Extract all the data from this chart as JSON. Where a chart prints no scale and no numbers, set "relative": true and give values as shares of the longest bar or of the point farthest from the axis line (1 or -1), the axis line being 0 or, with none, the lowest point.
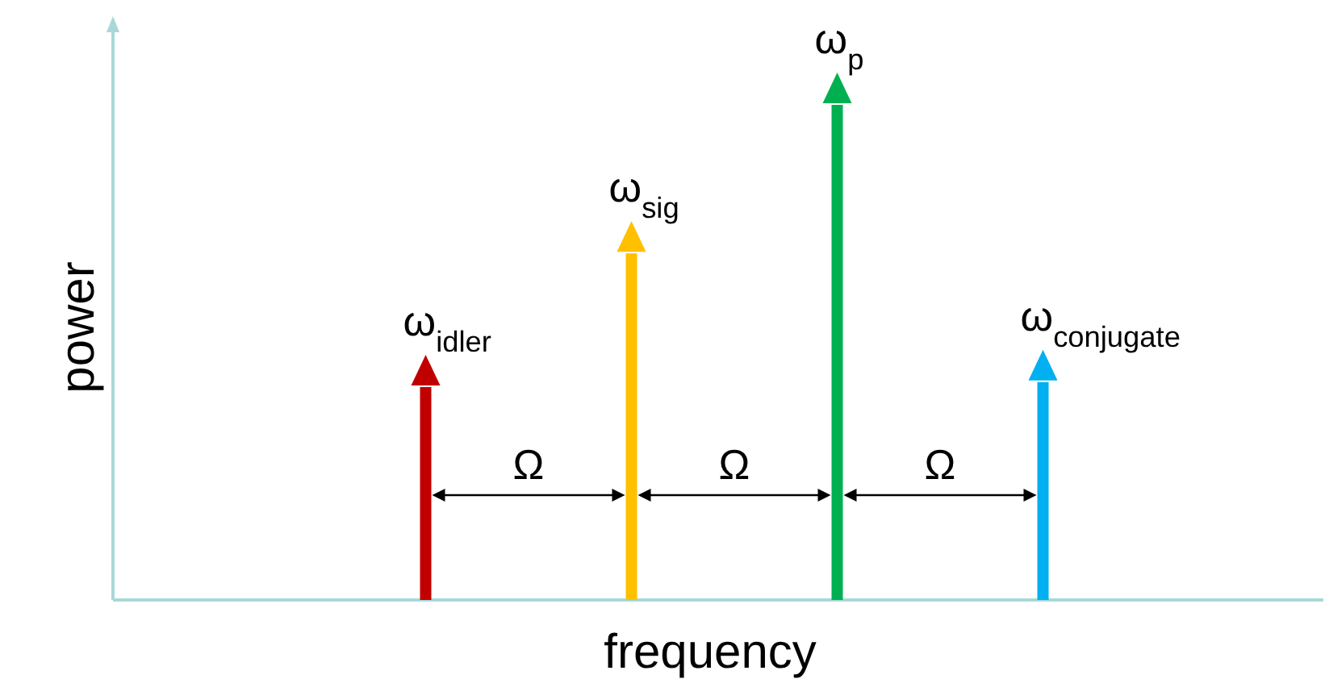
{
  "chart_data": {
    "type": "bar",
    "relative": true,
    "xlabel": "frequency",
    "ylabel": "power",
    "categories": [
      "ω$_{idler}$",
      "ω$_{sig}$",
      "ω$_{p}$",
      "ω$_{conjugate}$"
    ],
    "values": [
      0.43,
      0.7,
      1,
      0.44
    ],
    "colors": [
      "#c00000",
      "#ffc000",
      "#00b050",
      "#00b0f0"
    ],
    "annotations": [
      "Ω",
      "Ω",
      "Ω"
    ]
  }
}
